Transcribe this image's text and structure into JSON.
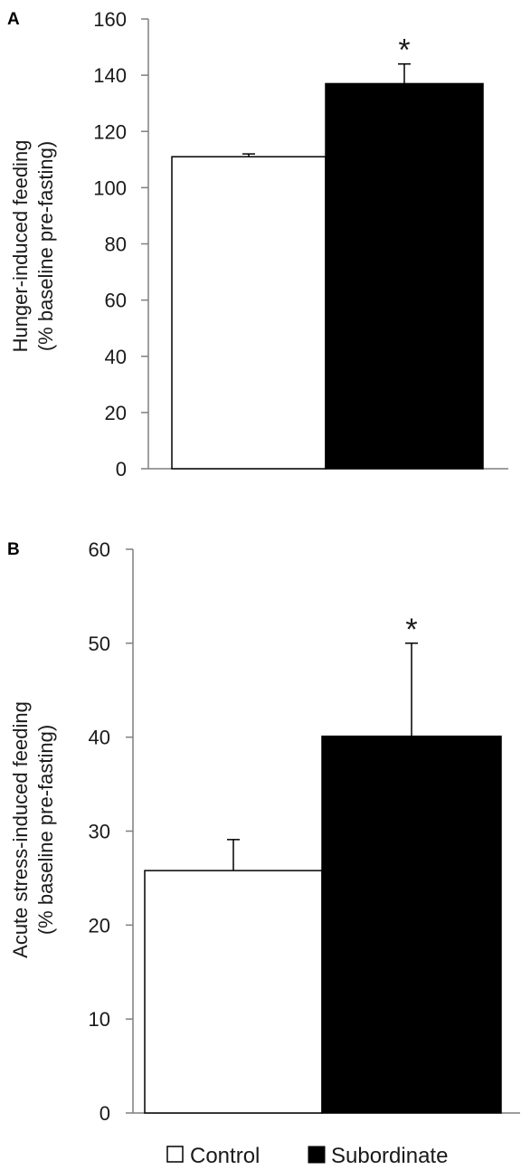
{
  "chart_data": [
    {
      "panel": "A",
      "type": "bar",
      "categories": [
        "Control",
        "Subordinate"
      ],
      "values": [
        111,
        137
      ],
      "errors": [
        1,
        7
      ],
      "significance": [
        "",
        "*"
      ],
      "ylabel": [
        "Hunger-induced feeding",
        "(% baseline pre-fasting)"
      ],
      "ylim": [
        0,
        160
      ],
      "yticks": [
        "0",
        "20",
        "40",
        "60",
        "80",
        "100",
        "120",
        "140",
        "160"
      ],
      "colors": [
        "#ffffff",
        "#000000"
      ],
      "grid": false
    },
    {
      "panel": "B",
      "type": "bar",
      "categories": [
        "Control",
        "Subordinate"
      ],
      "values": [
        25.8,
        40.1
      ],
      "errors": [
        3.3,
        9.9
      ],
      "significance": [
        "",
        "*"
      ],
      "ylabel": [
        "Acute stress-induced feeding",
        "(% baseline pre-fasting)"
      ],
      "ylim": [
        0,
        60
      ],
      "yticks": [
        "0",
        "10",
        "20",
        "30",
        "40",
        "50",
        "60"
      ],
      "colors": [
        "#ffffff",
        "#000000"
      ],
      "grid": false
    }
  ],
  "legend": {
    "items": [
      {
        "label": "Control",
        "color": "#ffffff"
      },
      {
        "label": "Subordinate",
        "color": "#000000"
      }
    ],
    "placement": "bottom"
  }
}
